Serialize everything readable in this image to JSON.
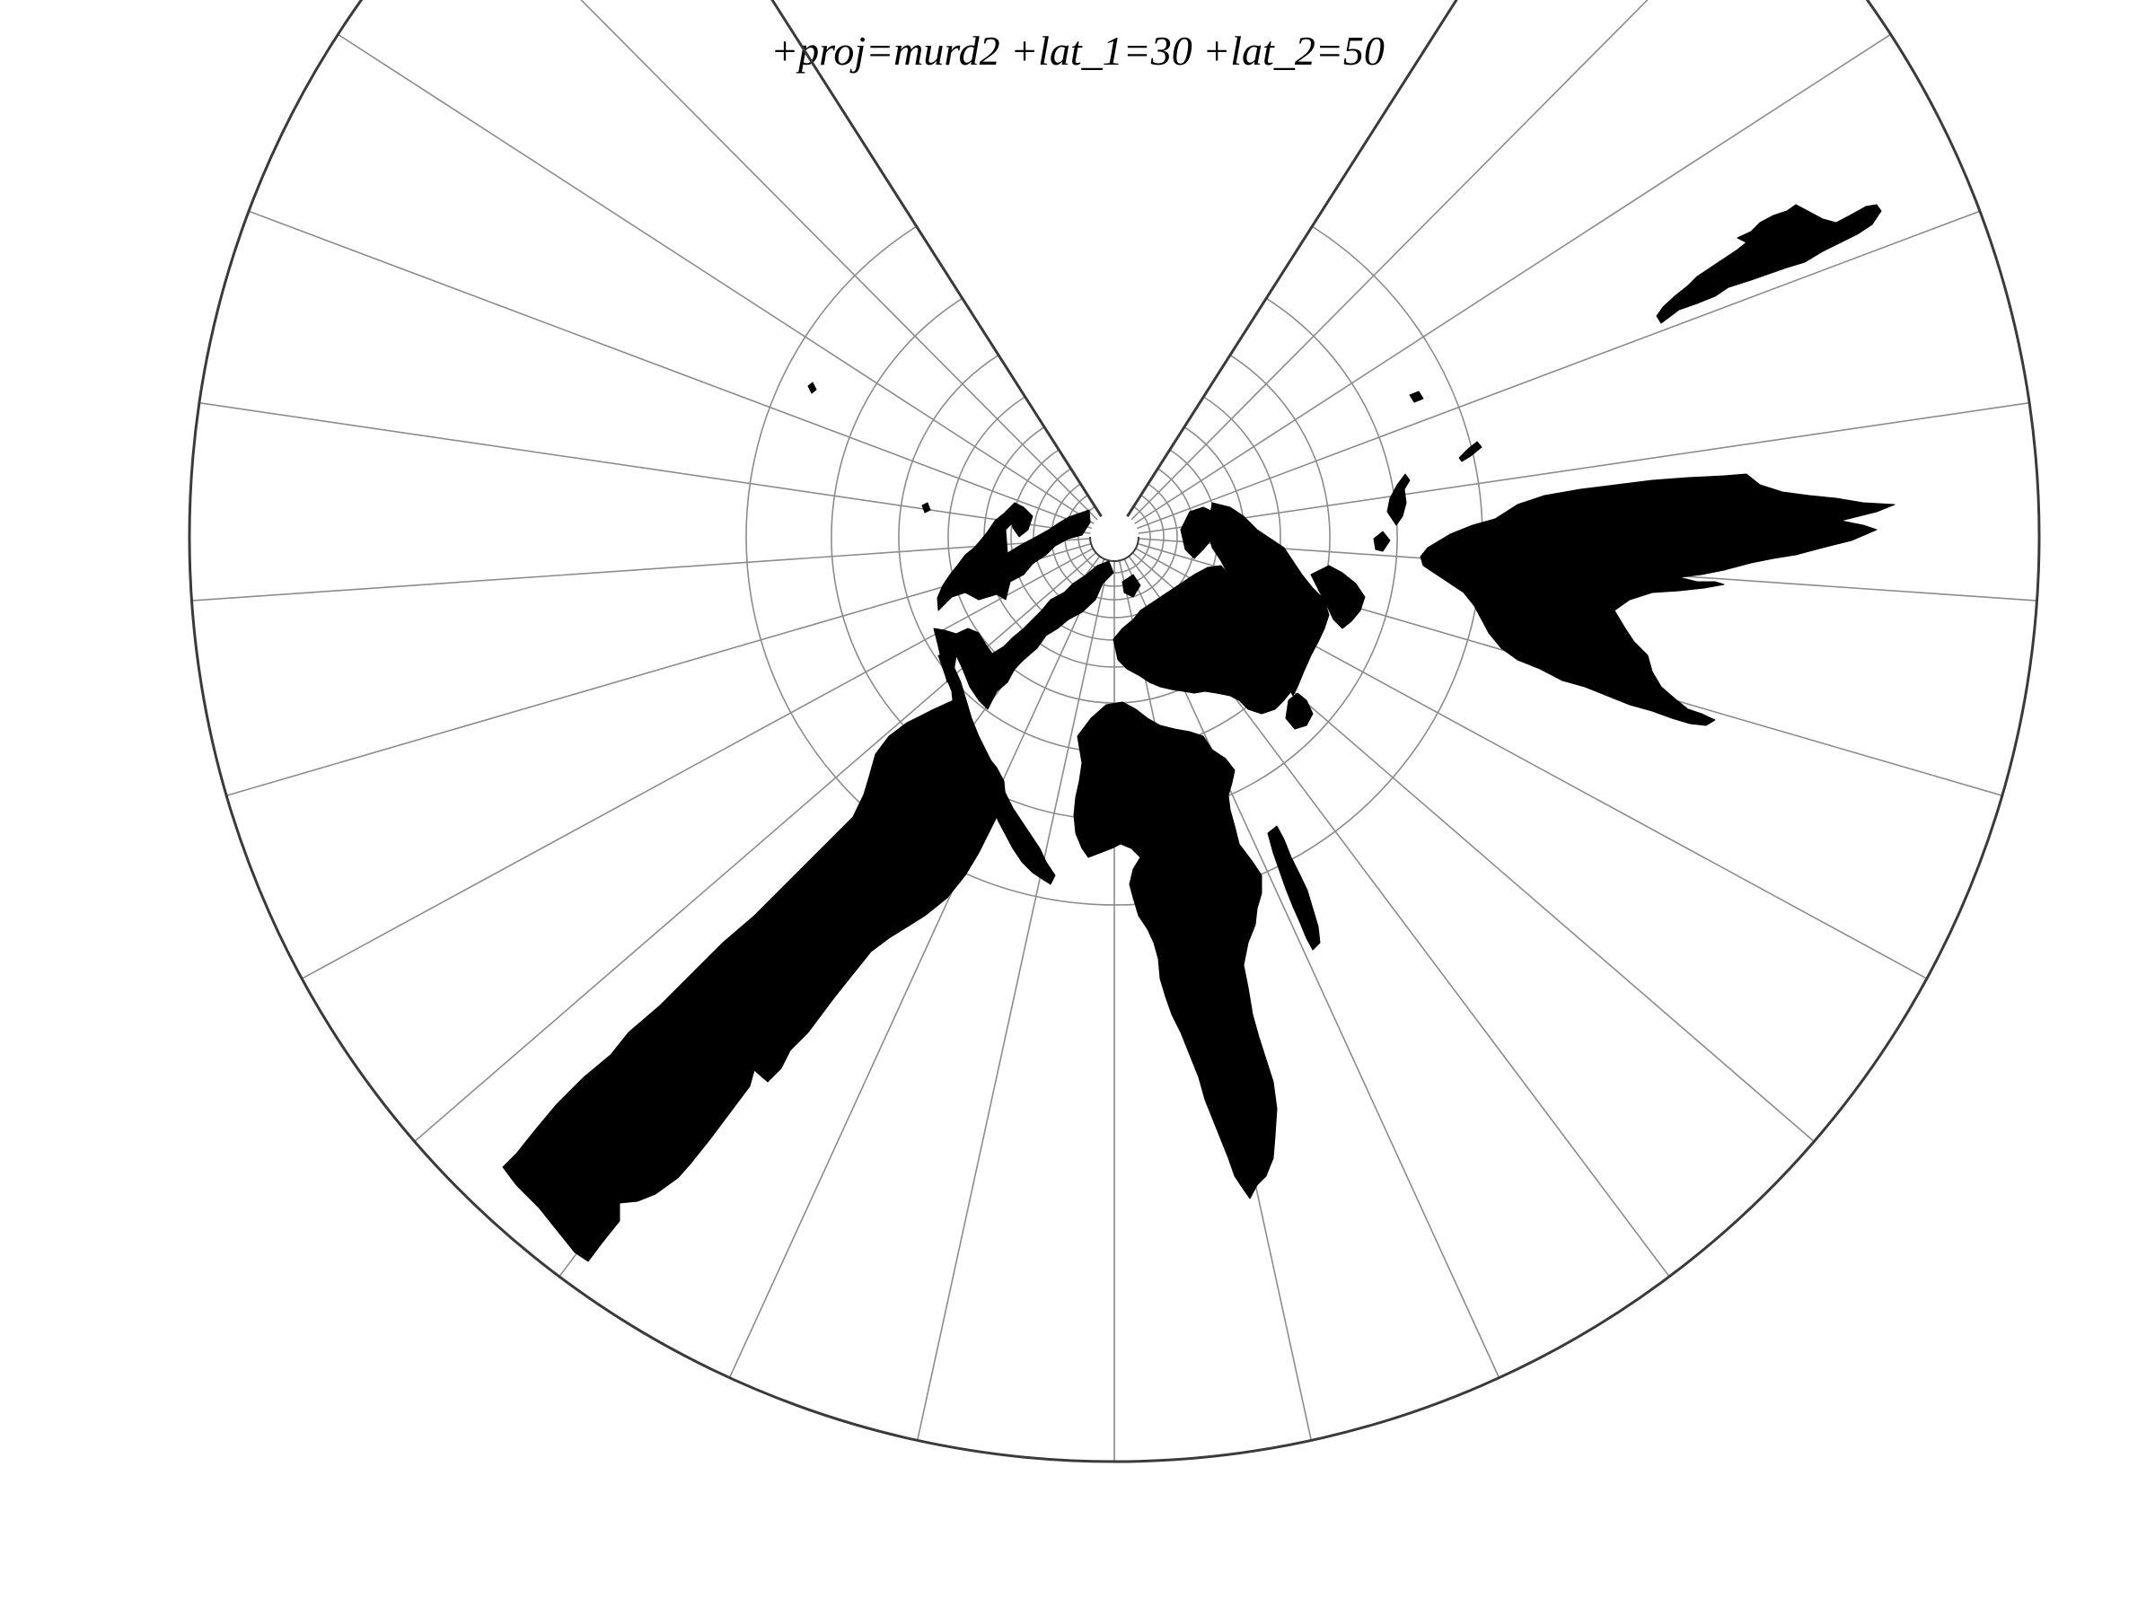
{
  "title": "+proj=murd2 +lat_1=30 +lat_2=50",
  "map": {
    "projection": "murd2",
    "standard_parallels": [
      30,
      50
    ],
    "graticule": {
      "meridian_step_deg": 15,
      "parallel_step_deg": 15,
      "color": "#8c8c8c"
    },
    "land_color": "#000000",
    "background_color": "#ffffff",
    "frame_color": "#3a3a3a",
    "features": [
      "north-america",
      "south-america",
      "europe",
      "africa",
      "madagascar",
      "asia",
      "japan",
      "australia",
      "new-zealand"
    ]
  }
}
